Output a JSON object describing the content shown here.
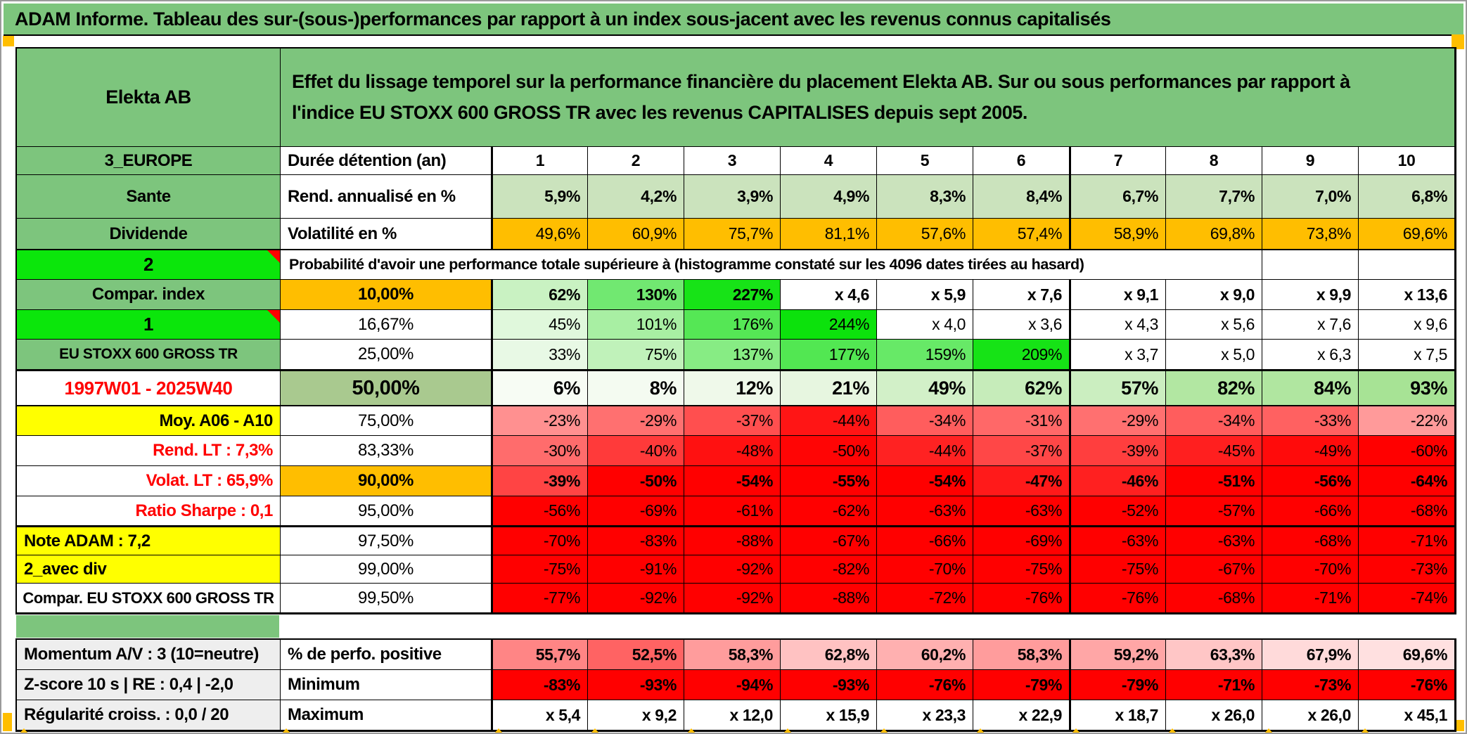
{
  "title_bar": "ADAM Informe. Tableau des sur-(sous-)performances par rapport à un index sous-jacent avec les revenus connus capitalisés",
  "header": {
    "asset_name": "Elekta AB",
    "description": "Effet du lissage temporel sur la performance financière du placement Elekta AB. Sur ou sous performances par rapport à l'indice EU STOXX 600 GROSS TR avec les revenus CAPITALISES depuis sept 2005."
  },
  "colors": {
    "green": "#7DC57D",
    "brightgreen": "#0BE60B",
    "sage": "#A9C98F",
    "lightgreen": "#CBE3BD",
    "orange": "#FFBE00",
    "yellow": "#FFFF00",
    "gray": "#EEEEEE",
    "white": "#FFFFFF",
    "red_text": "#FF0000",
    "pure_red": "#FF0000",
    "border": "#000000"
  },
  "table": {
    "rows": [
      {
        "id": "holding-period",
        "section": "main",
        "label": {
          "t": "3_EUROPE",
          "bg": "green",
          "bold": true
        },
        "metric": {
          "t": "Durée détention (an)",
          "bold": true,
          "align": "left"
        },
        "cellsBold": true,
        "cellsAlign": "center",
        "cells": [
          {
            "t": "1"
          },
          {
            "t": "2"
          },
          {
            "t": "3"
          },
          {
            "t": "4"
          },
          {
            "t": "5"
          },
          {
            "t": "6"
          },
          {
            "t": "7"
          },
          {
            "t": "8"
          },
          {
            "t": "9"
          },
          {
            "t": "10"
          }
        ]
      },
      {
        "id": "annualized-return",
        "section": "main",
        "label": {
          "t": "Sante",
          "bg": "green",
          "bold": true
        },
        "metric": {
          "t": "Rend. annualisé en %",
          "bold": true,
          "align": "left"
        },
        "cellsBold": true,
        "cells": [
          {
            "t": "5,9%",
            "bg": "#CBE3BD"
          },
          {
            "t": "4,2%",
            "bg": "#CBE3BD"
          },
          {
            "t": "3,9%",
            "bg": "#CBE3BD"
          },
          {
            "t": "4,9%",
            "bg": "#CBE3BD"
          },
          {
            "t": "8,3%",
            "bg": "#CBE3BD"
          },
          {
            "t": "8,4%",
            "bg": "#CBE3BD"
          },
          {
            "t": "6,7%",
            "bg": "#CBE3BD"
          },
          {
            "t": "7,7%",
            "bg": "#CBE3BD"
          },
          {
            "t": "7,0%",
            "bg": "#CBE3BD"
          },
          {
            "t": "6,8%",
            "bg": "#CBE3BD"
          }
        ]
      },
      {
        "id": "volatility",
        "section": "main",
        "thickBottom": true,
        "label": {
          "t": "Dividende",
          "bg": "green",
          "bold": true
        },
        "metric": {
          "t": "Volatilité en %",
          "bold": true,
          "align": "left"
        },
        "cells": [
          {
            "t": "49,6%",
            "bg": "#FFBE00"
          },
          {
            "t": "60,9%",
            "bg": "#FFBE00"
          },
          {
            "t": "75,7%",
            "bg": "#FFBE00"
          },
          {
            "t": "81,1%",
            "bg": "#FFBE00"
          },
          {
            "t": "57,6%",
            "bg": "#FFBE00"
          },
          {
            "t": "57,4%",
            "bg": "#FFBE00"
          },
          {
            "t": "58,9%",
            "bg": "#FFBE00"
          },
          {
            "t": "69,8%",
            "bg": "#FFBE00"
          },
          {
            "t": "73,8%",
            "bg": "#FFBE00"
          },
          {
            "t": "69,6%",
            "bg": "#FFBE00"
          }
        ]
      },
      {
        "id": "probability-note",
        "section": "main",
        "type": "span",
        "label": {
          "t": "2",
          "bg": "brightgreen",
          "bold": true,
          "fs": 26,
          "corner": true
        },
        "span": {
          "t": "Probabilité d'avoir une performance totale supérieure à (histogramme constaté sur les 4096 dates tirées au hasard)",
          "bold": true,
          "fs": 21.5
        }
      },
      {
        "id": "p10",
        "section": "main",
        "label": {
          "t": "Compar. index",
          "bg": "green",
          "bold": true
        },
        "metric": {
          "t": "10,00%",
          "bg": "orange",
          "bold": true
        },
        "cellsBold": true,
        "cells": [
          {
            "t": "62%",
            "bg": "#C9F2C2"
          },
          {
            "t": "130%",
            "bg": "#71E871"
          },
          {
            "t": "227%",
            "bg": "#17E317"
          },
          {
            "t": "x 4,6"
          },
          {
            "t": "x 5,9"
          },
          {
            "t": "x 7,6"
          },
          {
            "t": "x 9,1"
          },
          {
            "t": "x 9,0"
          },
          {
            "t": "x 9,9"
          },
          {
            "t": "x 13,6"
          }
        ]
      },
      {
        "id": "p16-67",
        "section": "main",
        "label": {
          "t": "1",
          "bg": "brightgreen",
          "bold": true,
          "fs": 26,
          "corner": true
        },
        "metric": {
          "t": "16,67%"
        },
        "cells": [
          {
            "t": "45%",
            "bg": "#E0F8DC"
          },
          {
            "t": "101%",
            "bg": "#A8EFA3"
          },
          {
            "t": "176%",
            "bg": "#55E755"
          },
          {
            "t": "244%",
            "bg": "#0CE20C"
          },
          {
            "t": "x 4,0"
          },
          {
            "t": "x 3,6"
          },
          {
            "t": "x 4,3"
          },
          {
            "t": "x 5,6"
          },
          {
            "t": "x 7,6"
          },
          {
            "t": "x 9,6"
          }
        ]
      },
      {
        "id": "p25",
        "section": "main",
        "label": {
          "t": "EU STOXX 600 GROSS TR",
          "bg": "green",
          "bold": true,
          "fs": 21
        },
        "metric": {
          "t": "25,00%"
        },
        "cells": [
          {
            "t": "33%",
            "bg": "#E8F9E5"
          },
          {
            "t": "75%",
            "bg": "#C0F2BA"
          },
          {
            "t": "137%",
            "bg": "#87EC84"
          },
          {
            "t": "177%",
            "bg": "#52E752"
          },
          {
            "t": "159%",
            "bg": "#67E967"
          },
          {
            "t": "209%",
            "bg": "#16E316"
          },
          {
            "t": "x 3,7"
          },
          {
            "t": "x 5,0"
          },
          {
            "t": "x 6,3"
          },
          {
            "t": "x 7,5"
          }
        ]
      },
      {
        "id": "p50",
        "section": "main",
        "thickTop": true,
        "thickBottom": true,
        "label": {
          "t": "1997W01 - 2025W40",
          "color": "#FF0000",
          "bold": true,
          "fs": 26
        },
        "metric": {
          "t": "50,00%",
          "bg": "sage",
          "bold": true,
          "fs": 29
        },
        "cellsBold": true,
        "cellFs": 27,
        "cells": [
          {
            "t": "6%",
            "bg": "#F7FCF4"
          },
          {
            "t": "8%",
            "bg": "#F4FBF1"
          },
          {
            "t": "12%",
            "bg": "#EFF9EA"
          },
          {
            "t": "21%",
            "bg": "#E7F6E0"
          },
          {
            "t": "49%",
            "bg": "#D2F0C8"
          },
          {
            "t": "62%",
            "bg": "#C6ECBA"
          },
          {
            "t": "57%",
            "bg": "#CBEEC0"
          },
          {
            "t": "82%",
            "bg": "#B2E7A2"
          },
          {
            "t": "84%",
            "bg": "#B0E6A0"
          },
          {
            "t": "93%",
            "bg": "#A7E395"
          }
        ]
      },
      {
        "id": "p75",
        "section": "main",
        "label": {
          "t": "Moy. A06 - A10",
          "bg": "yellow",
          "bold": true,
          "align": "right"
        },
        "metric": {
          "t": "75,00%"
        },
        "cells": [
          {
            "t": "-23%",
            "bg": "#FF9090"
          },
          {
            "t": "-29%",
            "bg": "#FF7070"
          },
          {
            "t": "-37%",
            "bg": "#FF4F4F"
          },
          {
            "t": "-44%",
            "bg": "#FF1515"
          },
          {
            "t": "-34%",
            "bg": "#FF5D5D"
          },
          {
            "t": "-31%",
            "bg": "#FF6868"
          },
          {
            "t": "-29%",
            "bg": "#FF7070"
          },
          {
            "t": "-34%",
            "bg": "#FF5D5D"
          },
          {
            "t": "-33%",
            "bg": "#FF6161"
          },
          {
            "t": "-22%",
            "bg": "#FF9A9A"
          }
        ]
      },
      {
        "id": "p83-33",
        "section": "main",
        "label": {
          "t": "Rend. LT :  7,3%",
          "color": "#FF0000",
          "bold": true,
          "align": "right"
        },
        "metric": {
          "t": "83,33%"
        },
        "cells": [
          {
            "t": "-30%",
            "bg": "#FF6C6C"
          },
          {
            "t": "-40%",
            "bg": "#FF3A3A"
          },
          {
            "t": "-48%",
            "bg": "#FF1111"
          },
          {
            "t": "-50%",
            "bg": "#FF0505"
          },
          {
            "t": "-44%",
            "bg": "#FF2222"
          },
          {
            "t": "-37%",
            "bg": "#FF4747"
          },
          {
            "t": "-39%",
            "bg": "#FF3E3E"
          },
          {
            "t": "-45%",
            "bg": "#FF1F1F"
          },
          {
            "t": "-49%",
            "bg": "#FF0B0B"
          },
          {
            "t": "-60%",
            "bg": "#FF0000"
          }
        ]
      },
      {
        "id": "p90",
        "section": "main",
        "label": {
          "t": "Volat. LT :  65,9%",
          "color": "#FF0000",
          "bold": true,
          "align": "right"
        },
        "metric": {
          "t": "90,00%",
          "bg": "orange",
          "bold": true
        },
        "cellsBold": true,
        "cells": [
          {
            "t": "-39%",
            "bg": "#FF4444"
          },
          {
            "t": "-50%",
            "bg": "#FF0000"
          },
          {
            "t": "-54%",
            "bg": "#FF0000"
          },
          {
            "t": "-55%",
            "bg": "#FF0000"
          },
          {
            "t": "-54%",
            "bg": "#FF0000"
          },
          {
            "t": "-47%",
            "bg": "#FF1A1A"
          },
          {
            "t": "-46%",
            "bg": "#FF2020"
          },
          {
            "t": "-51%",
            "bg": "#FF0000"
          },
          {
            "t": "-56%",
            "bg": "#FF0000"
          },
          {
            "t": "-64%",
            "bg": "#FF0000"
          }
        ]
      },
      {
        "id": "p95",
        "section": "main",
        "label": {
          "t": "Ratio Sharpe :  0,1",
          "color": "#FF0000",
          "bold": true,
          "align": "right"
        },
        "metric": {
          "t": "95,00%"
        },
        "cells": [
          {
            "t": "-56%",
            "bg": "#FF0000"
          },
          {
            "t": "-69%",
            "bg": "#FF0000"
          },
          {
            "t": "-61%",
            "bg": "#FF0000"
          },
          {
            "t": "-62%",
            "bg": "#FF0000"
          },
          {
            "t": "-63%",
            "bg": "#FF0000"
          },
          {
            "t": "-63%",
            "bg": "#FF0000"
          },
          {
            "t": "-52%",
            "bg": "#FF0000"
          },
          {
            "t": "-57%",
            "bg": "#FF0000"
          },
          {
            "t": "-66%",
            "bg": "#FF0000"
          },
          {
            "t": "-68%",
            "bg": "#FF0000"
          }
        ]
      },
      {
        "id": "p97-5",
        "section": "main",
        "thickTop": true,
        "label": {
          "t": "Note ADAM : 7,2",
          "bg": "yellow",
          "bold": true,
          "align": "left"
        },
        "metric": {
          "t": "97,50%"
        },
        "cells": [
          {
            "t": "-70%",
            "bg": "#FF0000"
          },
          {
            "t": "-83%",
            "bg": "#FF0000"
          },
          {
            "t": "-88%",
            "bg": "#FF0000"
          },
          {
            "t": "-67%",
            "bg": "#FF0000"
          },
          {
            "t": "-66%",
            "bg": "#FF0000"
          },
          {
            "t": "-69%",
            "bg": "#FF0000"
          },
          {
            "t": "-63%",
            "bg": "#FF0000"
          },
          {
            "t": "-63%",
            "bg": "#FF0000"
          },
          {
            "t": "-68%",
            "bg": "#FF0000"
          },
          {
            "t": "-71%",
            "bg": "#FF0000"
          }
        ]
      },
      {
        "id": "p99",
        "section": "main",
        "label": {
          "t": "2_avec div",
          "bg": "yellow",
          "bold": true,
          "align": "left"
        },
        "metric": {
          "t": "99,00%"
        },
        "cells": [
          {
            "t": "-75%",
            "bg": "#FF0000"
          },
          {
            "t": "-91%",
            "bg": "#FF0000"
          },
          {
            "t": "-92%",
            "bg": "#FF0000"
          },
          {
            "t": "-82%",
            "bg": "#FF0000"
          },
          {
            "t": "-70%",
            "bg": "#FF0000"
          },
          {
            "t": "-75%",
            "bg": "#FF0000"
          },
          {
            "t": "-75%",
            "bg": "#FF0000"
          },
          {
            "t": "-67%",
            "bg": "#FF0000"
          },
          {
            "t": "-70%",
            "bg": "#FF0000"
          },
          {
            "t": "-73%",
            "bg": "#FF0000"
          }
        ]
      },
      {
        "id": "p99-5",
        "section": "main",
        "label": {
          "t": "Compar. EU STOXX 600 GROSS TR",
          "bold": true,
          "fs": 22
        },
        "metric": {
          "t": "99,50%"
        },
        "cells": [
          {
            "t": "-77%",
            "bg": "#FF0000"
          },
          {
            "t": "-92%",
            "bg": "#FF0000"
          },
          {
            "t": "-92%",
            "bg": "#FF0000"
          },
          {
            "t": "-88%",
            "bg": "#FF0000"
          },
          {
            "t": "-72%",
            "bg": "#FF0000"
          },
          {
            "t": "-76%",
            "bg": "#FF0000"
          },
          {
            "t": "-76%",
            "bg": "#FF0000"
          },
          {
            "t": "-68%",
            "bg": "#FF0000"
          },
          {
            "t": "-71%",
            "bg": "#FF0000"
          },
          {
            "t": "-74%",
            "bg": "#FF0000"
          }
        ]
      },
      {
        "id": "pct-positive",
        "section": "bottom",
        "label": {
          "t": "Momentum A/V : 3 (10=neutre)",
          "bg": "gray",
          "bold": true,
          "align": "left"
        },
        "metric": {
          "t": "% de perfo. positive",
          "bold": true,
          "align": "left"
        },
        "cellsBold": true,
        "cells": [
          {
            "t": "55,7%",
            "bg": "#FF8585"
          },
          {
            "t": "52,5%",
            "bg": "#FF6363"
          },
          {
            "t": "58,3%",
            "bg": "#FF9C9C"
          },
          {
            "t": "62,8%",
            "bg": "#FFC2C2"
          },
          {
            "t": "60,2%",
            "bg": "#FFB0B0"
          },
          {
            "t": "58,3%",
            "bg": "#FF9C9C"
          },
          {
            "t": "59,2%",
            "bg": "#FFA6A6"
          },
          {
            "t": "63,3%",
            "bg": "#FFC6C6"
          },
          {
            "t": "67,9%",
            "bg": "#FFDADA"
          },
          {
            "t": "69,6%",
            "bg": "#FFE0E0"
          }
        ]
      },
      {
        "id": "minimum",
        "section": "bottom",
        "label": {
          "t": "Z-score 10 s | RE : 0,4 | -2,0",
          "bg": "gray",
          "bold": true,
          "align": "left"
        },
        "metric": {
          "t": "Minimum",
          "bold": true,
          "align": "left"
        },
        "cellsBold": true,
        "cells": [
          {
            "t": "-83%",
            "bg": "#FF0000"
          },
          {
            "t": "-93%",
            "bg": "#FF0000"
          },
          {
            "t": "-94%",
            "bg": "#FF0000"
          },
          {
            "t": "-93%",
            "bg": "#FF0000"
          },
          {
            "t": "-76%",
            "bg": "#FF0000"
          },
          {
            "t": "-79%",
            "bg": "#FF0000"
          },
          {
            "t": "-79%",
            "bg": "#FF0000"
          },
          {
            "t": "-71%",
            "bg": "#FF0000"
          },
          {
            "t": "-73%",
            "bg": "#FF0000"
          },
          {
            "t": "-76%",
            "bg": "#FF0000"
          }
        ]
      },
      {
        "id": "maximum",
        "section": "bottom",
        "label": {
          "t": "Régularité croiss. : 0,0 / 20",
          "bg": "gray",
          "bold": true,
          "align": "left"
        },
        "metric": {
          "t": "Maximum",
          "bold": true,
          "align": "left"
        },
        "cellsBold": true,
        "cells": [
          {
            "t": "x 5,4"
          },
          {
            "t": "x 9,2"
          },
          {
            "t": "x 12,0"
          },
          {
            "t": "x 15,9"
          },
          {
            "t": "x 23,3"
          },
          {
            "t": "x 22,9"
          },
          {
            "t": "x 18,7"
          },
          {
            "t": "x 26,0"
          },
          {
            "t": "x 26,0"
          },
          {
            "t": "x 45,1"
          }
        ]
      }
    ]
  }
}
